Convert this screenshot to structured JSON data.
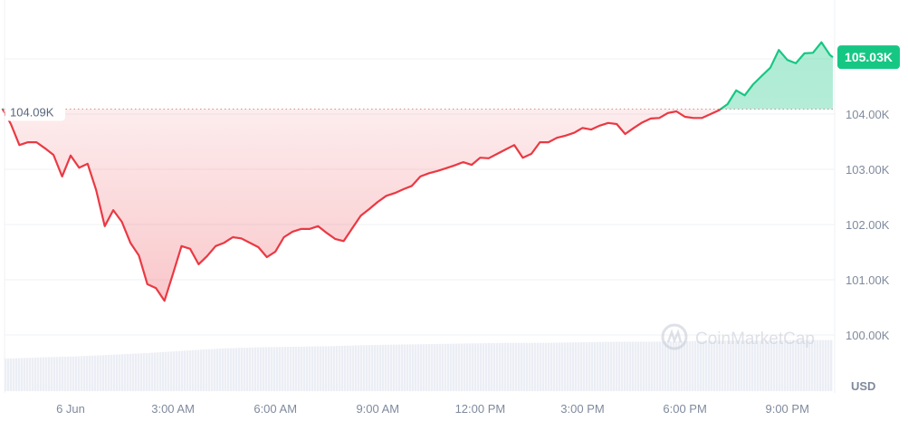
{
  "chart_data": {
    "type": "line",
    "currency_label": "USD",
    "reference_price_label": "104.09K",
    "reference_price": 104.09,
    "current_price_label": "105.03K",
    "current_price": 105.03,
    "watermark": "CoinMarketCap",
    "y_unit": "K USD",
    "ylim": [
      99.6,
      105.95
    ],
    "y_ticks": [
      {
        "value": 100,
        "label": "100.00K"
      },
      {
        "value": 101,
        "label": "101.00K"
      },
      {
        "value": 102,
        "label": "102.00K"
      },
      {
        "value": 103,
        "label": "103.00K"
      },
      {
        "value": 104,
        "label": "104.00K"
      }
    ],
    "x_ticks": [
      {
        "time": "6 Jun 00:00",
        "label": "6 Jun"
      },
      {
        "time": "6 Jun 03:00",
        "label": "3:00 AM"
      },
      {
        "time": "6 Jun 06:00",
        "label": "6:00 AM"
      },
      {
        "time": "6 Jun 09:00",
        "label": "9:00 AM"
      },
      {
        "time": "6 Jun 12:00",
        "label": "12:00 PM"
      },
      {
        "time": "6 Jun 15:00",
        "label": "3:00 PM"
      },
      {
        "time": "6 Jun 18:00",
        "label": "6:00 PM"
      },
      {
        "time": "6 Jun 21:00",
        "label": "9:00 PM"
      }
    ],
    "grid": "horizontal",
    "colors": {
      "down": "#ea3943",
      "up": "#16c784",
      "axis_text": "#808a9d",
      "grid": "#eff2f5",
      "volume": "#eceef5"
    },
    "volume_relative": [
      0.58,
      0.6,
      0.62,
      0.65,
      0.68,
      0.72,
      0.76,
      0.78,
      0.79,
      0.8,
      0.82,
      0.83,
      0.84,
      0.85,
      0.86,
      0.86,
      0.87,
      0.88,
      0.88,
      0.89,
      0.9,
      0.9,
      0.91,
      0.91
    ],
    "series": [
      {
        "times": [
          "5 Jun 22:00",
          "5 Jun 22:15",
          "5 Jun 22:30",
          "5 Jun 22:45",
          "5 Jun 23:00",
          "5 Jun 23:15",
          "5 Jun 23:30",
          "5 Jun 23:45",
          "6 Jun 00:00",
          "6 Jun 00:15",
          "6 Jun 00:30",
          "6 Jun 00:45",
          "6 Jun 01:00",
          "6 Jun 01:15",
          "6 Jun 01:30",
          "6 Jun 01:45",
          "6 Jun 02:00",
          "6 Jun 02:15",
          "6 Jun 02:30",
          "6 Jun 02:45",
          "6 Jun 03:00",
          "6 Jun 03:15",
          "6 Jun 03:30",
          "6 Jun 03:45",
          "6 Jun 04:00",
          "6 Jun 04:15",
          "6 Jun 04:30",
          "6 Jun 04:45",
          "6 Jun 05:00",
          "6 Jun 05:15",
          "6 Jun 05:30",
          "6 Jun 05:45",
          "6 Jun 06:00",
          "6 Jun 06:15",
          "6 Jun 06:30",
          "6 Jun 06:45",
          "6 Jun 07:00",
          "6 Jun 07:15",
          "6 Jun 07:30",
          "6 Jun 07:45",
          "6 Jun 08:00",
          "6 Jun 08:15",
          "6 Jun 08:30",
          "6 Jun 08:45",
          "6 Jun 09:00",
          "6 Jun 09:15",
          "6 Jun 09:30",
          "6 Jun 09:45",
          "6 Jun 10:00",
          "6 Jun 10:15",
          "6 Jun 10:30",
          "6 Jun 10:45",
          "6 Jun 11:00",
          "6 Jun 11:15",
          "6 Jun 11:30",
          "6 Jun 11:45",
          "6 Jun 12:00",
          "6 Jun 12:15",
          "6 Jun 12:30",
          "6 Jun 12:45",
          "6 Jun 13:00",
          "6 Jun 13:15",
          "6 Jun 13:30",
          "6 Jun 13:45",
          "6 Jun 14:00",
          "6 Jun 14:15",
          "6 Jun 14:30",
          "6 Jun 14:45",
          "6 Jun 15:00",
          "6 Jun 15:15",
          "6 Jun 15:30",
          "6 Jun 15:45",
          "6 Jun 16:00",
          "6 Jun 16:15",
          "6 Jun 16:30",
          "6 Jun 16:45",
          "6 Jun 17:00",
          "6 Jun 17:15",
          "6 Jun 17:30",
          "6 Jun 17:45",
          "6 Jun 18:00",
          "6 Jun 18:15",
          "6 Jun 18:30",
          "6 Jun 18:45",
          "6 Jun 19:00",
          "6 Jun 19:15",
          "6 Jun 19:30",
          "6 Jun 19:45",
          "6 Jun 20:00",
          "6 Jun 20:15",
          "6 Jun 20:30",
          "6 Jun 20:45",
          "6 Jun 21:00",
          "6 Jun 21:15",
          "6 Jun 21:30",
          "6 Jun 21:45",
          "6 Jun 22:00",
          "6 Jun 22:15",
          "6 Jun 22:20"
        ],
        "values": [
          104.1,
          103.82,
          103.44,
          103.49,
          103.49,
          103.38,
          103.26,
          102.87,
          103.25,
          103.03,
          103.1,
          102.62,
          101.97,
          102.26,
          102.05,
          101.67,
          101.44,
          100.92,
          100.85,
          100.62,
          101.11,
          101.61,
          101.56,
          101.28,
          101.43,
          101.61,
          101.67,
          101.77,
          101.75,
          101.67,
          101.59,
          101.41,
          101.51,
          101.77,
          101.87,
          101.92,
          101.92,
          101.97,
          101.85,
          101.74,
          101.7,
          101.93,
          102.16,
          102.28,
          102.41,
          102.52,
          102.57,
          102.64,
          102.7,
          102.87,
          102.93,
          102.97,
          103.02,
          103.07,
          103.13,
          103.08,
          103.21,
          103.2,
          103.28,
          103.36,
          103.44,
          103.21,
          103.28,
          103.49,
          103.49,
          103.57,
          103.61,
          103.66,
          103.75,
          103.72,
          103.79,
          103.84,
          103.82,
          103.64,
          103.75,
          103.85,
          103.92,
          103.93,
          104.02,
          104.05,
          103.95,
          103.93,
          103.93,
          104.0,
          104.07,
          104.18,
          104.43,
          104.34,
          104.54,
          104.69,
          104.84,
          105.16,
          104.98,
          104.92,
          105.1,
          105.11,
          105.3,
          105.07,
          105.03
        ]
      }
    ]
  }
}
